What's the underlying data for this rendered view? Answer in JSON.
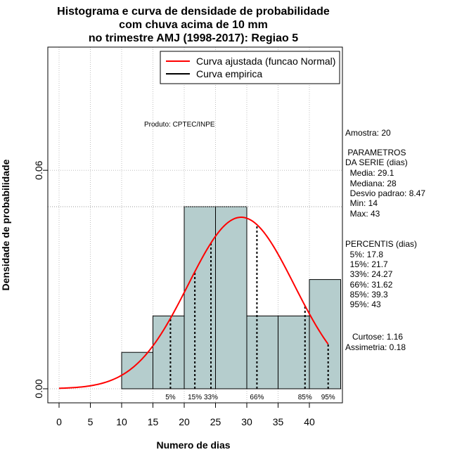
{
  "chart_data": {
    "type": "bar",
    "title": [
      "Histograma e curva de densidade de probabilidade",
      "com chuva acima de 10 mm",
      "no trimestre AMJ (1998-2017): Regiao 5"
    ],
    "xlabel": "Numero de dias",
    "ylabel": "Densidade de probabilidade",
    "xlim": [
      -2,
      45
    ],
    "ylim": [
      -0.004,
      0.092
    ],
    "x_ticks": [
      0,
      5,
      10,
      15,
      20,
      25,
      30,
      35,
      40
    ],
    "y_ticks": [
      0.0,
      0.06
    ],
    "y_tick_labels": [
      "0.00",
      "0.06"
    ],
    "grid": true,
    "product_note": "Produto: CPTEC/INPE",
    "bins": [
      {
        "from": 10,
        "to": 15,
        "density": 0.01
      },
      {
        "from": 15,
        "to": 20,
        "density": 0.02
      },
      {
        "from": 20,
        "to": 25,
        "density": 0.05
      },
      {
        "from": 25,
        "to": 30,
        "density": 0.05
      },
      {
        "from": 30,
        "to": 35,
        "density": 0.02
      },
      {
        "from": 35,
        "to": 40,
        "density": 0.02
      },
      {
        "from": 40,
        "to": 45,
        "density": 0.03
      }
    ],
    "bar_color": "#b5cdcd",
    "normal_curve": {
      "name": "Curva ajustada (funcao Normal)",
      "color": "#ff0000",
      "mean": 29.1,
      "sd": 8.47,
      "x_range": [
        0,
        43
      ]
    },
    "empirical_curve": {
      "name": "Curva empirica",
      "color": "#000000"
    },
    "percentiles": [
      {
        "label": "5%",
        "value": 17.8
      },
      {
        "label": "15%",
        "value": 21.7
      },
      {
        "label": "33%",
        "value": 24.27
      },
      {
        "label": "66%",
        "value": 31.62
      },
      {
        "label": "85%",
        "value": 39.3
      },
      {
        "label": "95%",
        "value": 43
      }
    ],
    "legend_position": "top-right"
  },
  "stats_panel": {
    "amostra": "Amostra: 20",
    "parametros_title_1": " PARAMETROS",
    "parametros_title_2": "DA SERIE (dias)",
    "media": "  Media: 29.1",
    "mediana": "  Mediana: 28",
    "desvio": "  Desvio padrao: 8.47",
    "min": "  Min: 14",
    "max": "  Max: 43",
    "percentis_title": "PERCENTIS (dias)",
    "p5": "  5%: 17.8",
    "p15": "  15%: 21.7",
    "p33": "  33%: 24.27",
    "p66": "  66%: 31.62",
    "p85": "  85%: 39.3",
    "p95": "  95%: 43",
    "curtose": "   Curtose: 1.16",
    "assimetria": "Assimetria: 0.18"
  }
}
